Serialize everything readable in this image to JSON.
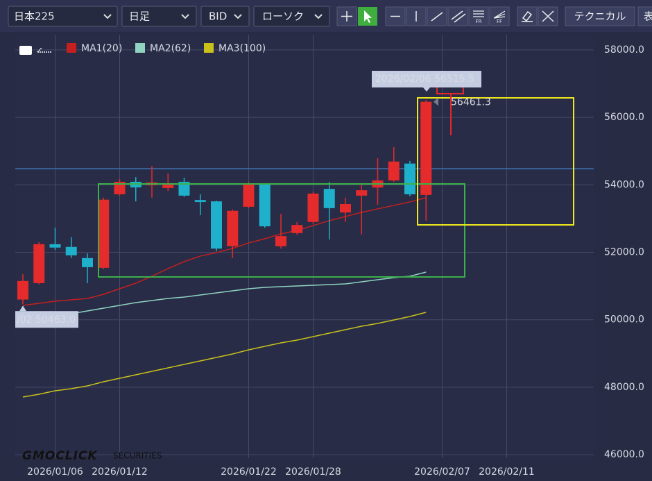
{
  "toolbar": {
    "symbol": "日本225",
    "period": "日足",
    "price": "BID",
    "style": "ローソク",
    "fr": "FR",
    "ff": "FF",
    "technical": "テクニカル",
    "more": "表"
  },
  "brand": "GMOCLICK",
  "brand_sub": "SECURITIES",
  "chart_data": {
    "type": "candlestick",
    "categories": [
      null,
      null,
      "2026/01/06",
      null,
      null,
      null,
      "2026/01/12",
      null,
      null,
      null,
      null,
      null,
      null,
      null,
      "2026/01/22",
      null,
      null,
      null,
      "2026/01/28",
      null,
      null,
      null,
      null,
      null,
      null,
      null,
      "2026/02/07",
      null,
      null,
      null,
      "2026/02/11",
      null,
      null,
      null,
      null,
      null
    ],
    "open": [
      50600,
      51085,
      52240,
      52160,
      51830,
      51540,
      53720,
      54090,
      53990,
      53905,
      54090,
      53550,
      53510,
      52180,
      53350,
      54010,
      52180,
      52570,
      52900,
      53880,
      53180,
      53680,
      53920,
      54130,
      54630,
      53700,
      null,
      null,
      null,
      null,
      null,
      null,
      null,
      null,
      null,
      null
    ],
    "high": [
      51350,
      52300,
      52730,
      52450,
      51970,
      53620,
      54170,
      54230,
      54560,
      54340,
      54210,
      53720,
      53530,
      53270,
      54090,
      54050,
      53140,
      52900,
      53800,
      54090,
      53620,
      54030,
      54790,
      55120,
      54710,
      56515.5,
      null,
      null,
      null,
      null,
      null,
      null,
      null,
      null,
      null,
      null
    ],
    "low": [
      50463,
      51050,
      52070,
      51830,
      51085,
      51500,
      53680,
      53510,
      53620,
      53820,
      53640,
      53100,
      52030,
      51830,
      53310,
      52730,
      52110,
      52520,
      52850,
      52380,
      52900,
      52530,
      53410,
      54090,
      53660,
      52940,
      null,
      null,
      null,
      null,
      null,
      null,
      null,
      null,
      null,
      null
    ],
    "close": [
      51150,
      52240,
      52140,
      51910,
      51560,
      53560,
      54090,
      53925,
      54070,
      54050,
      53680,
      53490,
      52110,
      53230,
      54010,
      52770,
      52480,
      52810,
      53740,
      53310,
      53430,
      53840,
      54130,
      54690,
      53720,
      56461.3,
      null,
      null,
      null,
      null,
      null,
      null,
      null,
      null,
      null,
      null
    ],
    "up_color": "#e52b2b",
    "down_color": "#1fb0cc",
    "series": [
      {
        "name": "MA1(20)",
        "color": "#c4201f",
        "values": [
          50426,
          50488,
          50549,
          50590,
          50631,
          50755,
          50920,
          51085,
          51290,
          51517,
          51723,
          51888,
          51991,
          52114,
          52279,
          52402,
          52546,
          52649,
          52793,
          52937,
          53061,
          53184,
          53287,
          53390,
          53493,
          53617,
          null,
          null,
          null,
          null,
          null,
          null,
          null,
          null,
          null,
          null
        ]
      },
      {
        "name": "MA2(62)",
        "color": "#8fd3c0",
        "values": [
          49974,
          50035,
          50097,
          50179,
          50262,
          50344,
          50426,
          50509,
          50570,
          50632,
          50673,
          50735,
          50797,
          50859,
          50920,
          50962,
          50982,
          51003,
          51023,
          51044,
          51064,
          51126,
          51188,
          51250,
          51291,
          51414,
          null,
          null,
          null,
          null,
          null,
          null,
          null,
          null,
          null,
          null
        ]
      },
      {
        "name": "MA3(100)",
        "color": "#c9c21a",
        "values": [
          47710,
          47792,
          47895,
          47957,
          48039,
          48163,
          48266,
          48369,
          48471,
          48574,
          48677,
          48780,
          48883,
          48986,
          49109,
          49212,
          49315,
          49397,
          49500,
          49603,
          49706,
          49809,
          49891,
          49994,
          50097,
          50220,
          null,
          null,
          null,
          null,
          null,
          null,
          null,
          null,
          null,
          null
        ]
      }
    ],
    "ylim": [
      45900,
      58450
    ],
    "yticks": [
      {
        "value": 46000,
        "label": "46000.0"
      },
      {
        "value": 48000,
        "label": "48000.0"
      },
      {
        "value": 50000,
        "label": "50000.0"
      },
      {
        "value": 52000,
        "label": "52000.0"
      },
      {
        "value": 54000,
        "label": "54000.0"
      },
      {
        "value": 56000,
        "label": "56000.0"
      },
      {
        "value": 58000,
        "label": "58000.0"
      }
    ],
    "grid": true,
    "hline": {
      "value": 54480,
      "color": "#3d6fb0"
    },
    "annotations": [
      {
        "text": "2026/02/06 56515.5",
        "value": 56515.5
      },
      {
        "text": "56461.3",
        "value": 56461.3
      },
      {
        "text": "/02 50463.0",
        "value": 50463
      }
    ]
  }
}
